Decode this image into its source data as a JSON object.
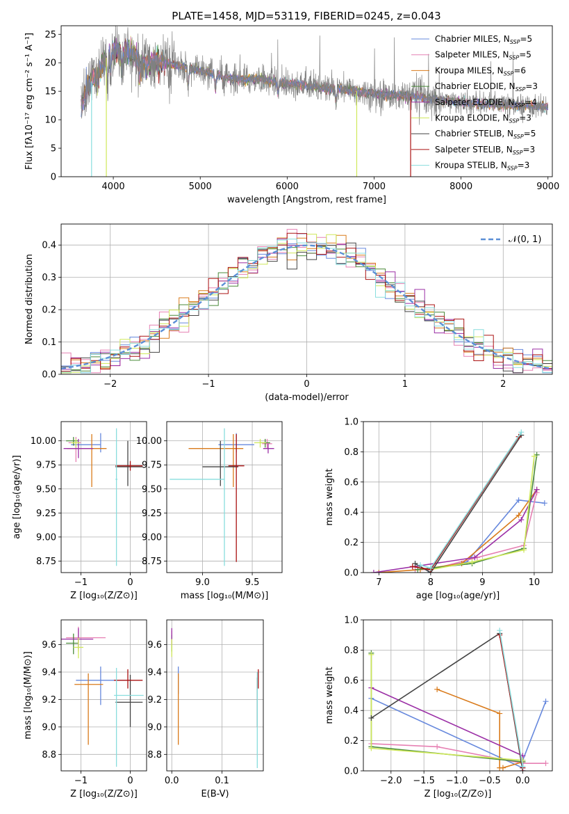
{
  "figure": {
    "title": "PLATE=1458, MJD=53119, FIBERID=0245, z=0.043"
  },
  "series_colors": {
    "Chabrier MILES": "#6688dd",
    "Salpeter MILES": "#e680b3",
    "Kroupa MILES": "#d97a1a",
    "Chabrier ELODIE": "#4a8a3a",
    "Salpeter ELODIE": "#9b2fa6",
    "Kroupa ELODIE": "#cfe85a",
    "Chabrier STELIB": "#444444",
    "Salpeter STELIB": "#aa1111",
    "Kroupa STELIB": "#88dddd",
    "data": "#808080",
    "normal": "#5b8fd6"
  },
  "chart_data": [
    {
      "id": "spectrum",
      "type": "line",
      "xlabel": "wavelength [Angstrom, rest frame]",
      "ylabel": "Flux [fλ10⁻¹⁷ erg cm⁻² s⁻¹ A⁻¹]",
      "xlim": [
        3400,
        9050
      ],
      "ylim": [
        0,
        26.5
      ],
      "xticks": [
        4000,
        5000,
        6000,
        7000,
        8000,
        9000
      ],
      "yticks": [
        0,
        5,
        10,
        15,
        20,
        25
      ],
      "legend_position": "top-right",
      "grid": false,
      "legend": [
        {
          "name": "Chabrier MILES",
          "sub": "5"
        },
        {
          "name": "Salpeter MILES",
          "sub": "5"
        },
        {
          "name": "Kroupa MILES",
          "sub": "6"
        },
        {
          "name": "Chabrier ELODIE",
          "sub": "3"
        },
        {
          "name": "Salpeter ELODIE",
          "sub": "4"
        },
        {
          "name": "Kroupa ELODIE",
          "sub": "3"
        },
        {
          "name": "Chabrier STELIB",
          "sub": "5"
        },
        {
          "name": "Salpeter STELIB",
          "sub": "3"
        },
        {
          "name": "Kroupa STELIB",
          "sub": "3"
        }
      ],
      "continuum": {
        "x": [
          3650,
          3700,
          3800,
          3900,
          4000,
          4100,
          4200,
          4300,
          4400,
          4500,
          4700,
          4900,
          5100,
          5300,
          5500,
          5700,
          5900,
          6100,
          6300,
          6500,
          6700,
          6900,
          7100,
          7300,
          7500,
          7700,
          7900,
          8100,
          8300,
          8500,
          8700,
          8900
        ],
        "y": [
          13.0,
          15.5,
          18.0,
          20.5,
          22.5,
          21.8,
          22.0,
          20.5,
          19.5,
          20.5,
          19.5,
          19.0,
          18.2,
          17.5,
          17.0,
          17.2,
          16.5,
          16.3,
          15.8,
          15.5,
          15.2,
          14.8,
          14.5,
          14.2,
          14.0,
          13.5,
          13.3,
          12.8,
          12.8,
          12.6,
          12.5,
          12.3
        ]
      },
      "spikes": [
        {
          "x": 3750,
          "y": 0.0,
          "series": "Kroupa STELIB"
        },
        {
          "x": 3920,
          "y": 0.0,
          "series": "Kroupa ELODIE"
        },
        {
          "x": 6800,
          "y": 0.0,
          "series": "Kroupa ELODIE"
        },
        {
          "x": 7420,
          "y": 0.0,
          "series": "Salpeter STELIB"
        }
      ]
    },
    {
      "id": "residual-histogram",
      "type": "line",
      "xlabel": "(data-model)/error",
      "ylabel": "Normed distribution",
      "xlim": [
        -2.5,
        2.5
      ],
      "ylim": [
        0,
        0.465
      ],
      "xticks": [
        -2,
        -1,
        0,
        1,
        2
      ],
      "yticks": [
        0.0,
        0.1,
        0.2,
        0.3,
        0.4
      ],
      "grid": true,
      "legend_position": "top-right",
      "normal_label": "𝒩(0, 1)",
      "bin_width": 0.1
    },
    {
      "id": "age-vs-Z",
      "type": "scatter",
      "xlabel": "Z [log₁₀(Z/Z⊙)]",
      "ylabel": "age  [log₁₀(age/yr)]",
      "xlim": [
        -1.4,
        0.33
      ],
      "ylim": [
        8.63,
        10.2
      ],
      "xticks": [
        -1,
        0
      ],
      "yticks": [
        8.75,
        9.0,
        9.25,
        9.5,
        9.75,
        10.0
      ],
      "grid": true,
      "points": [
        {
          "series": "Chabrier MILES",
          "x": -0.6,
          "y": 9.96,
          "xerr": [
            0.6,
            0.0
          ],
          "yerr": [
            0.08,
            0.12
          ]
        },
        {
          "series": "Salpeter MILES",
          "x": -1.1,
          "y": 9.98,
          "xerr": [
            0.15,
            0.1
          ],
          "yerr": [
            0.2,
            0.06
          ]
        },
        {
          "series": "Kroupa MILES",
          "x": -0.78,
          "y": 9.92,
          "xerr": [
            0.5,
            0.3
          ],
          "yerr": [
            0.4,
            0.15
          ]
        },
        {
          "series": "Chabrier ELODIE",
          "x": -1.15,
          "y": 10.0,
          "xerr": [
            0.15,
            0.1
          ],
          "yerr": [
            0.05,
            0.04
          ]
        },
        {
          "series": "Salpeter ELODIE",
          "x": -1.05,
          "y": 9.92,
          "xerr": [
            0.3,
            0.3
          ],
          "yerr": [
            0.1,
            0.1
          ]
        },
        {
          "series": "Kroupa ELODIE",
          "x": -1.1,
          "y": 9.98,
          "xerr": [
            0.1,
            0.08
          ],
          "yerr": [
            0.05,
            0.04
          ]
        },
        {
          "series": "Chabrier STELIB",
          "x": -0.05,
          "y": 9.73,
          "xerr": [
            0.25,
            0.3
          ],
          "yerr": [
            0.2,
            0.27
          ]
        },
        {
          "series": "Salpeter STELIB",
          "x": 0.0,
          "y": 9.74,
          "xerr": [
            0.3,
            0.25
          ],
          "yerr": [
            0.05,
            0.05
          ]
        },
        {
          "series": "Kroupa STELIB",
          "x": -0.28,
          "y": 9.6,
          "xerr": [
            0.02,
            0.02
          ],
          "yerr": [
            0.9,
            0.53
          ]
        }
      ]
    },
    {
      "id": "age-vs-mass",
      "type": "scatter",
      "xlabel": "mass [log₁₀(M/M⊙)]",
      "ylabel": "",
      "xlim": [
        8.64,
        9.8
      ],
      "ylim": [
        8.63,
        10.2
      ],
      "xticks": [
        9.0,
        9.5
      ],
      "yticks": [
        8.75,
        9.0,
        9.25,
        9.5,
        9.75,
        10.0
      ],
      "grid": true,
      "points": [
        {
          "series": "Chabrier MILES",
          "x": 9.34,
          "y": 9.96,
          "xerr": [
            0.18,
            0.18
          ],
          "yerr": [
            0.08,
            0.12
          ]
        },
        {
          "series": "Salpeter MILES",
          "x": 9.65,
          "y": 9.97,
          "xerr": [
            0.05,
            0.05
          ],
          "yerr": [
            0.05,
            0.05
          ]
        },
        {
          "series": "Kroupa MILES",
          "x": 9.31,
          "y": 9.92,
          "xerr": [
            0.45,
            0.1
          ],
          "yerr": [
            0.4,
            0.15
          ]
        },
        {
          "series": "Chabrier ELODIE",
          "x": 9.63,
          "y": 9.98,
          "xerr": [
            0.05,
            0.05
          ],
          "yerr": [
            0.05,
            0.04
          ]
        },
        {
          "series": "Salpeter ELODIE",
          "x": 9.66,
          "y": 9.92,
          "xerr": [
            0.05,
            0.06
          ],
          "yerr": [
            0.05,
            0.05
          ]
        },
        {
          "series": "Kroupa ELODIE",
          "x": 9.58,
          "y": 9.98,
          "xerr": [
            0.06,
            0.06
          ],
          "yerr": [
            0.05,
            0.04
          ]
        },
        {
          "series": "Chabrier STELIB",
          "x": 9.18,
          "y": 9.73,
          "xerr": [
            0.18,
            0.18
          ],
          "yerr": [
            0.2,
            0.27
          ]
        },
        {
          "series": "Salpeter STELIB",
          "x": 9.34,
          "y": 9.74,
          "xerr": [
            0.08,
            0.08
          ],
          "yerr": [
            1.0,
            0.33
          ]
        },
        {
          "series": "Kroupa STELIB",
          "x": 9.22,
          "y": 9.6,
          "xerr": [
            0.55,
            0.0
          ],
          "yerr": [
            0.9,
            0.53
          ]
        }
      ]
    },
    {
      "id": "mass-weight-vs-age",
      "type": "line",
      "xlabel": "age  [log₁₀(age/yr)]",
      "ylabel": "mass weight",
      "xlim": [
        6.7,
        10.35
      ],
      "ylim": [
        0,
        1.0
      ],
      "xticks": [
        7,
        8,
        9,
        10
      ],
      "yticks": [
        0.0,
        0.2,
        0.4,
        0.6,
        0.8,
        1.0
      ],
      "grid": true,
      "series": [
        {
          "name": "Chabrier MILES",
          "x": [
            7.7,
            7.95,
            8.7,
            9.7,
            10.2
          ],
          "y": [
            0.02,
            0.02,
            0.07,
            0.48,
            0.46
          ]
        },
        {
          "name": "Salpeter MILES",
          "x": [
            7.7,
            8.0,
            8.9,
            9.8,
            10.05
          ],
          "y": [
            0.02,
            0.02,
            0.1,
            0.18,
            0.53
          ]
        },
        {
          "name": "Kroupa MILES",
          "x": [
            7.0,
            7.8,
            8.6,
            9.7,
            10.05
          ],
          "y": [
            0.0,
            0.02,
            0.06,
            0.38,
            0.55
          ]
        },
        {
          "name": "Chabrier ELODIE",
          "x": [
            7.75,
            8.8,
            9.8,
            10.05
          ],
          "y": [
            0.02,
            0.06,
            0.16,
            0.78
          ]
        },
        {
          "name": "Salpeter ELODIE",
          "x": [
            6.9,
            8.85,
            9.75,
            10.05
          ],
          "y": [
            0.0,
            0.1,
            0.35,
            0.55
          ]
        },
        {
          "name": "Kroupa ELODIE",
          "x": [
            8.0,
            8.8,
            9.8,
            10.0
          ],
          "y": [
            0.02,
            0.07,
            0.15,
            0.77
          ]
        },
        {
          "name": "Chabrier STELIB",
          "x": [
            7.7,
            8.0,
            9.75
          ],
          "y": [
            0.06,
            0.0,
            0.91
          ]
        },
        {
          "name": "Salpeter STELIB",
          "x": [
            7.65,
            8.0,
            9.7
          ],
          "y": [
            0.04,
            0.02,
            0.9
          ]
        },
        {
          "name": "Kroupa STELIB",
          "x": [
            7.8,
            8.0,
            9.75
          ],
          "y": [
            0.05,
            0.03,
            0.93
          ]
        }
      ]
    },
    {
      "id": "mass-vs-Z",
      "type": "scatter",
      "xlabel": "Z [log₁₀(Z/Z⊙)]",
      "ylabel": "mass [log₁₀(M/M⊙)]",
      "xlim": [
        -1.4,
        0.33
      ],
      "ylim": [
        8.68,
        9.78
      ],
      "xticks": [
        -1,
        0
      ],
      "yticks": [
        8.8,
        9.0,
        9.2,
        9.4,
        9.6
      ],
      "grid": true,
      "points": [
        {
          "series": "Chabrier MILES",
          "x": -0.6,
          "y": 9.34,
          "xerr": [
            0.5,
            0.6
          ],
          "yerr": [
            0.18,
            0.1
          ]
        },
        {
          "series": "Salpeter MILES",
          "x": -1.05,
          "y": 9.65,
          "xerr": [
            0.25,
            0.55
          ],
          "yerr": [
            0.1,
            0.08
          ]
        },
        {
          "series": "Kroupa MILES",
          "x": -0.85,
          "y": 9.31,
          "xerr": [
            0.28,
            0.3
          ],
          "yerr": [
            0.44,
            0.08
          ]
        },
        {
          "series": "Chabrier ELODIE",
          "x": -1.15,
          "y": 9.61,
          "xerr": [
            0.15,
            0.1
          ],
          "yerr": [
            0.08,
            0.07
          ]
        },
        {
          "series": "Salpeter ELODIE",
          "x": -1.05,
          "y": 9.64,
          "xerr": [
            0.35,
            0.3
          ],
          "yerr": [
            0.07,
            0.08
          ]
        },
        {
          "series": "Kroupa ELODIE",
          "x": -1.05,
          "y": 9.58,
          "xerr": [
            0.1,
            0.1
          ],
          "yerr": [
            0.08,
            0.07
          ]
        },
        {
          "series": "Chabrier STELIB",
          "x": 0.0,
          "y": 9.18,
          "xerr": [
            0.3,
            0.25
          ],
          "yerr": [
            0.18,
            0.2
          ]
        },
        {
          "series": "Salpeter STELIB",
          "x": -0.05,
          "y": 9.34,
          "xerr": [
            0.28,
            0.3
          ],
          "yerr": [
            0.06,
            0.08
          ]
        },
        {
          "series": "Kroupa STELIB",
          "x": -0.28,
          "y": 9.23,
          "xerr": [
            0.05,
            0.55
          ],
          "yerr": [
            0.52,
            0.2
          ]
        }
      ]
    },
    {
      "id": "mass-vs-EBV",
      "type": "scatter",
      "xlabel": "E(B-V)",
      "ylabel": "",
      "xlim": [
        -0.01,
        0.182
      ],
      "ylim": [
        8.68,
        9.78
      ],
      "xticks": [
        0.0,
        0.1
      ],
      "yticks": [
        8.8,
        9.0,
        9.2,
        9.4,
        9.6
      ],
      "grid": true,
      "points": [
        {
          "series": "Chabrier MILES",
          "x": 0.013,
          "y": 9.34,
          "xerr": [
            0,
            0
          ],
          "yerr": [
            0.1,
            0.1
          ]
        },
        {
          "series": "Salpeter MILES",
          "x": 0.0,
          "y": 9.65,
          "xerr": [
            0,
            0
          ],
          "yerr": [
            0.05,
            0.05
          ]
        },
        {
          "series": "Kroupa MILES",
          "x": 0.013,
          "y": 9.31,
          "xerr": [
            0,
            0
          ],
          "yerr": [
            0.44,
            0.08
          ]
        },
        {
          "series": "Chabrier ELODIE",
          "x": 0.0,
          "y": 9.61,
          "xerr": [
            0,
            0
          ],
          "yerr": [
            0.06,
            0.06
          ]
        },
        {
          "series": "Salpeter ELODIE",
          "x": 0.0,
          "y": 9.66,
          "xerr": [
            0,
            0
          ],
          "yerr": [
            0.06,
            0.06
          ]
        },
        {
          "series": "Kroupa ELODIE",
          "x": 0.0,
          "y": 9.58,
          "xerr": [
            0,
            0
          ],
          "yerr": [
            0.07,
            0.06
          ]
        },
        {
          "series": "Chabrier STELIB",
          "x": 0.17,
          "y": 9.18,
          "xerr": [
            0,
            0
          ],
          "yerr": [
            0.18,
            0.18
          ]
        },
        {
          "series": "Salpeter STELIB",
          "x": 0.172,
          "y": 9.34,
          "xerr": [
            0,
            0
          ],
          "yerr": [
            0.06,
            0.08
          ]
        },
        {
          "series": "Kroupa STELIB",
          "x": 0.17,
          "y": 9.1,
          "xerr": [
            0,
            0
          ],
          "yerr": [
            0.4,
            0.3
          ]
        }
      ]
    },
    {
      "id": "mass-weight-vs-Z",
      "type": "line",
      "xlabel": "Z [log₁₀(Z/Z⊙)]",
      "ylabel": "mass weight",
      "xlim": [
        -2.42,
        0.45
      ],
      "ylim": [
        0,
        1.0
      ],
      "xticks": [
        -2.0,
        -1.5,
        -1.0,
        -0.5,
        0.0
      ],
      "yticks": [
        0.0,
        0.2,
        0.4,
        0.6,
        0.8,
        1.0
      ],
      "grid": true,
      "series": [
        {
          "name": "Chabrier MILES",
          "x": [
            -2.3,
            0.0,
            0.0,
            0.35
          ],
          "y": [
            0.48,
            0.02,
            0.07,
            0.46
          ]
        },
        {
          "name": "Salpeter MILES",
          "x": [
            -2.3,
            -1.3,
            0.0,
            0.35
          ],
          "y": [
            0.18,
            0.16,
            0.05,
            0.05
          ]
        },
        {
          "name": "Kroupa MILES",
          "x": [
            -1.3,
            -0.35,
            -0.35,
            -0.3,
            0.0
          ],
          "y": [
            0.54,
            0.38,
            0.02,
            0.02,
            0.06
          ]
        },
        {
          "name": "Chabrier ELODIE",
          "x": [
            -2.3,
            -2.3,
            0.0
          ],
          "y": [
            0.78,
            0.16,
            0.06
          ]
        },
        {
          "name": "Salpeter ELODIE",
          "x": [
            -2.3,
            0.0,
            0.0
          ],
          "y": [
            0.55,
            0.1,
            0.0
          ]
        },
        {
          "name": "Kroupa ELODIE",
          "x": [
            -2.3,
            -2.3,
            0.0
          ],
          "y": [
            0.77,
            0.15,
            0.07
          ]
        },
        {
          "name": "Chabrier STELIB",
          "x": [
            -2.3,
            -0.35,
            0.0
          ],
          "y": [
            0.35,
            0.91,
            0.0
          ]
        },
        {
          "name": "Salpeter STELIB",
          "x": [
            -0.35,
            0.0
          ],
          "y": [
            0.9,
            0.02
          ]
        },
        {
          "name": "Kroupa STELIB",
          "x": [
            -0.35,
            0.0
          ],
          "y": [
            0.93,
            0.03
          ]
        }
      ]
    }
  ]
}
